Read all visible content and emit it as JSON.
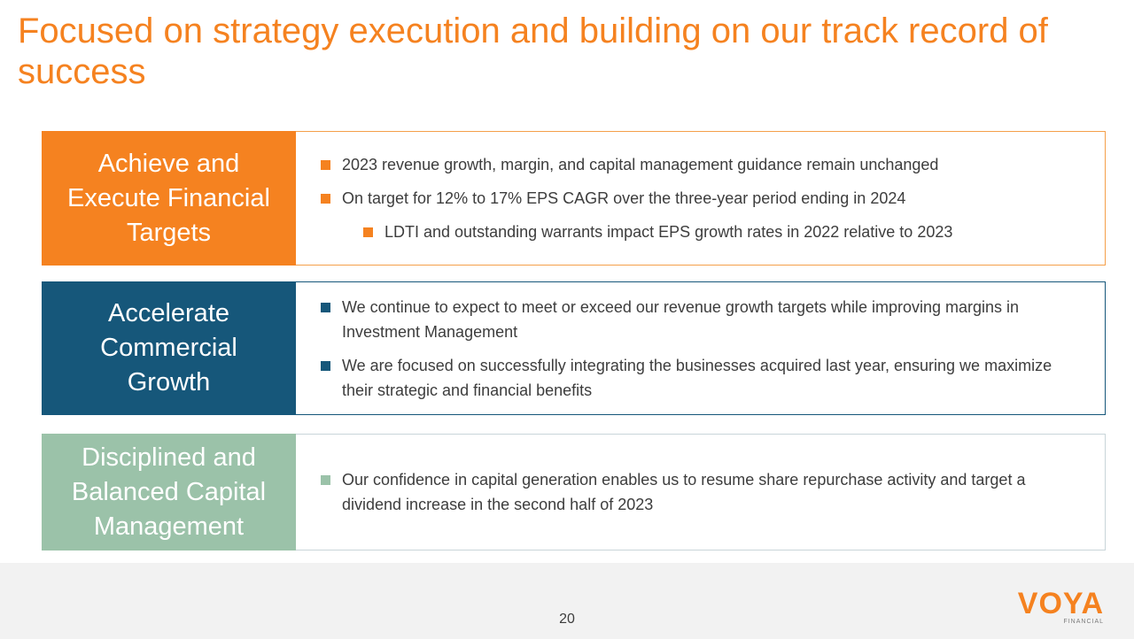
{
  "slide": {
    "title": "Focused on strategy execution and building on our track record of success",
    "page_number": "20"
  },
  "rows": [
    {
      "label_lines": [
        "Achieve and",
        "Execute Financial",
        "Targets"
      ],
      "bullets": [
        "2023 revenue growth, margin, and capital management guidance remain unchanged",
        "On target for 12% to 17% EPS CAGR over the three-year period ending in 2024"
      ],
      "sub_bullets": [
        "LDTI and outstanding warrants impact EPS growth rates in 2022 relative to 2023"
      ]
    },
    {
      "label_lines": [
        "Accelerate",
        "Commercial",
        "Growth"
      ],
      "bullets": [
        "We continue to expect to meet or exceed our revenue growth targets while improving margins in Investment Management",
        "We are focused on successfully integrating the businesses acquired last year, ensuring we maximize their strategic and financial benefits"
      ]
    },
    {
      "label_lines": [
        "Disciplined and",
        "Balanced Capital",
        "Management"
      ],
      "bullets": [
        "Our confidence in capital generation enables us to resume share repurchase activity and target a dividend increase in the second half of 2023"
      ]
    }
  ],
  "logo": {
    "word": "VOYA",
    "sub": "FINANCIAL"
  },
  "colors": {
    "title": "#f58220",
    "row_1": "#f58220",
    "row_2": "#16577a",
    "row_3": "#9bc2a9"
  }
}
